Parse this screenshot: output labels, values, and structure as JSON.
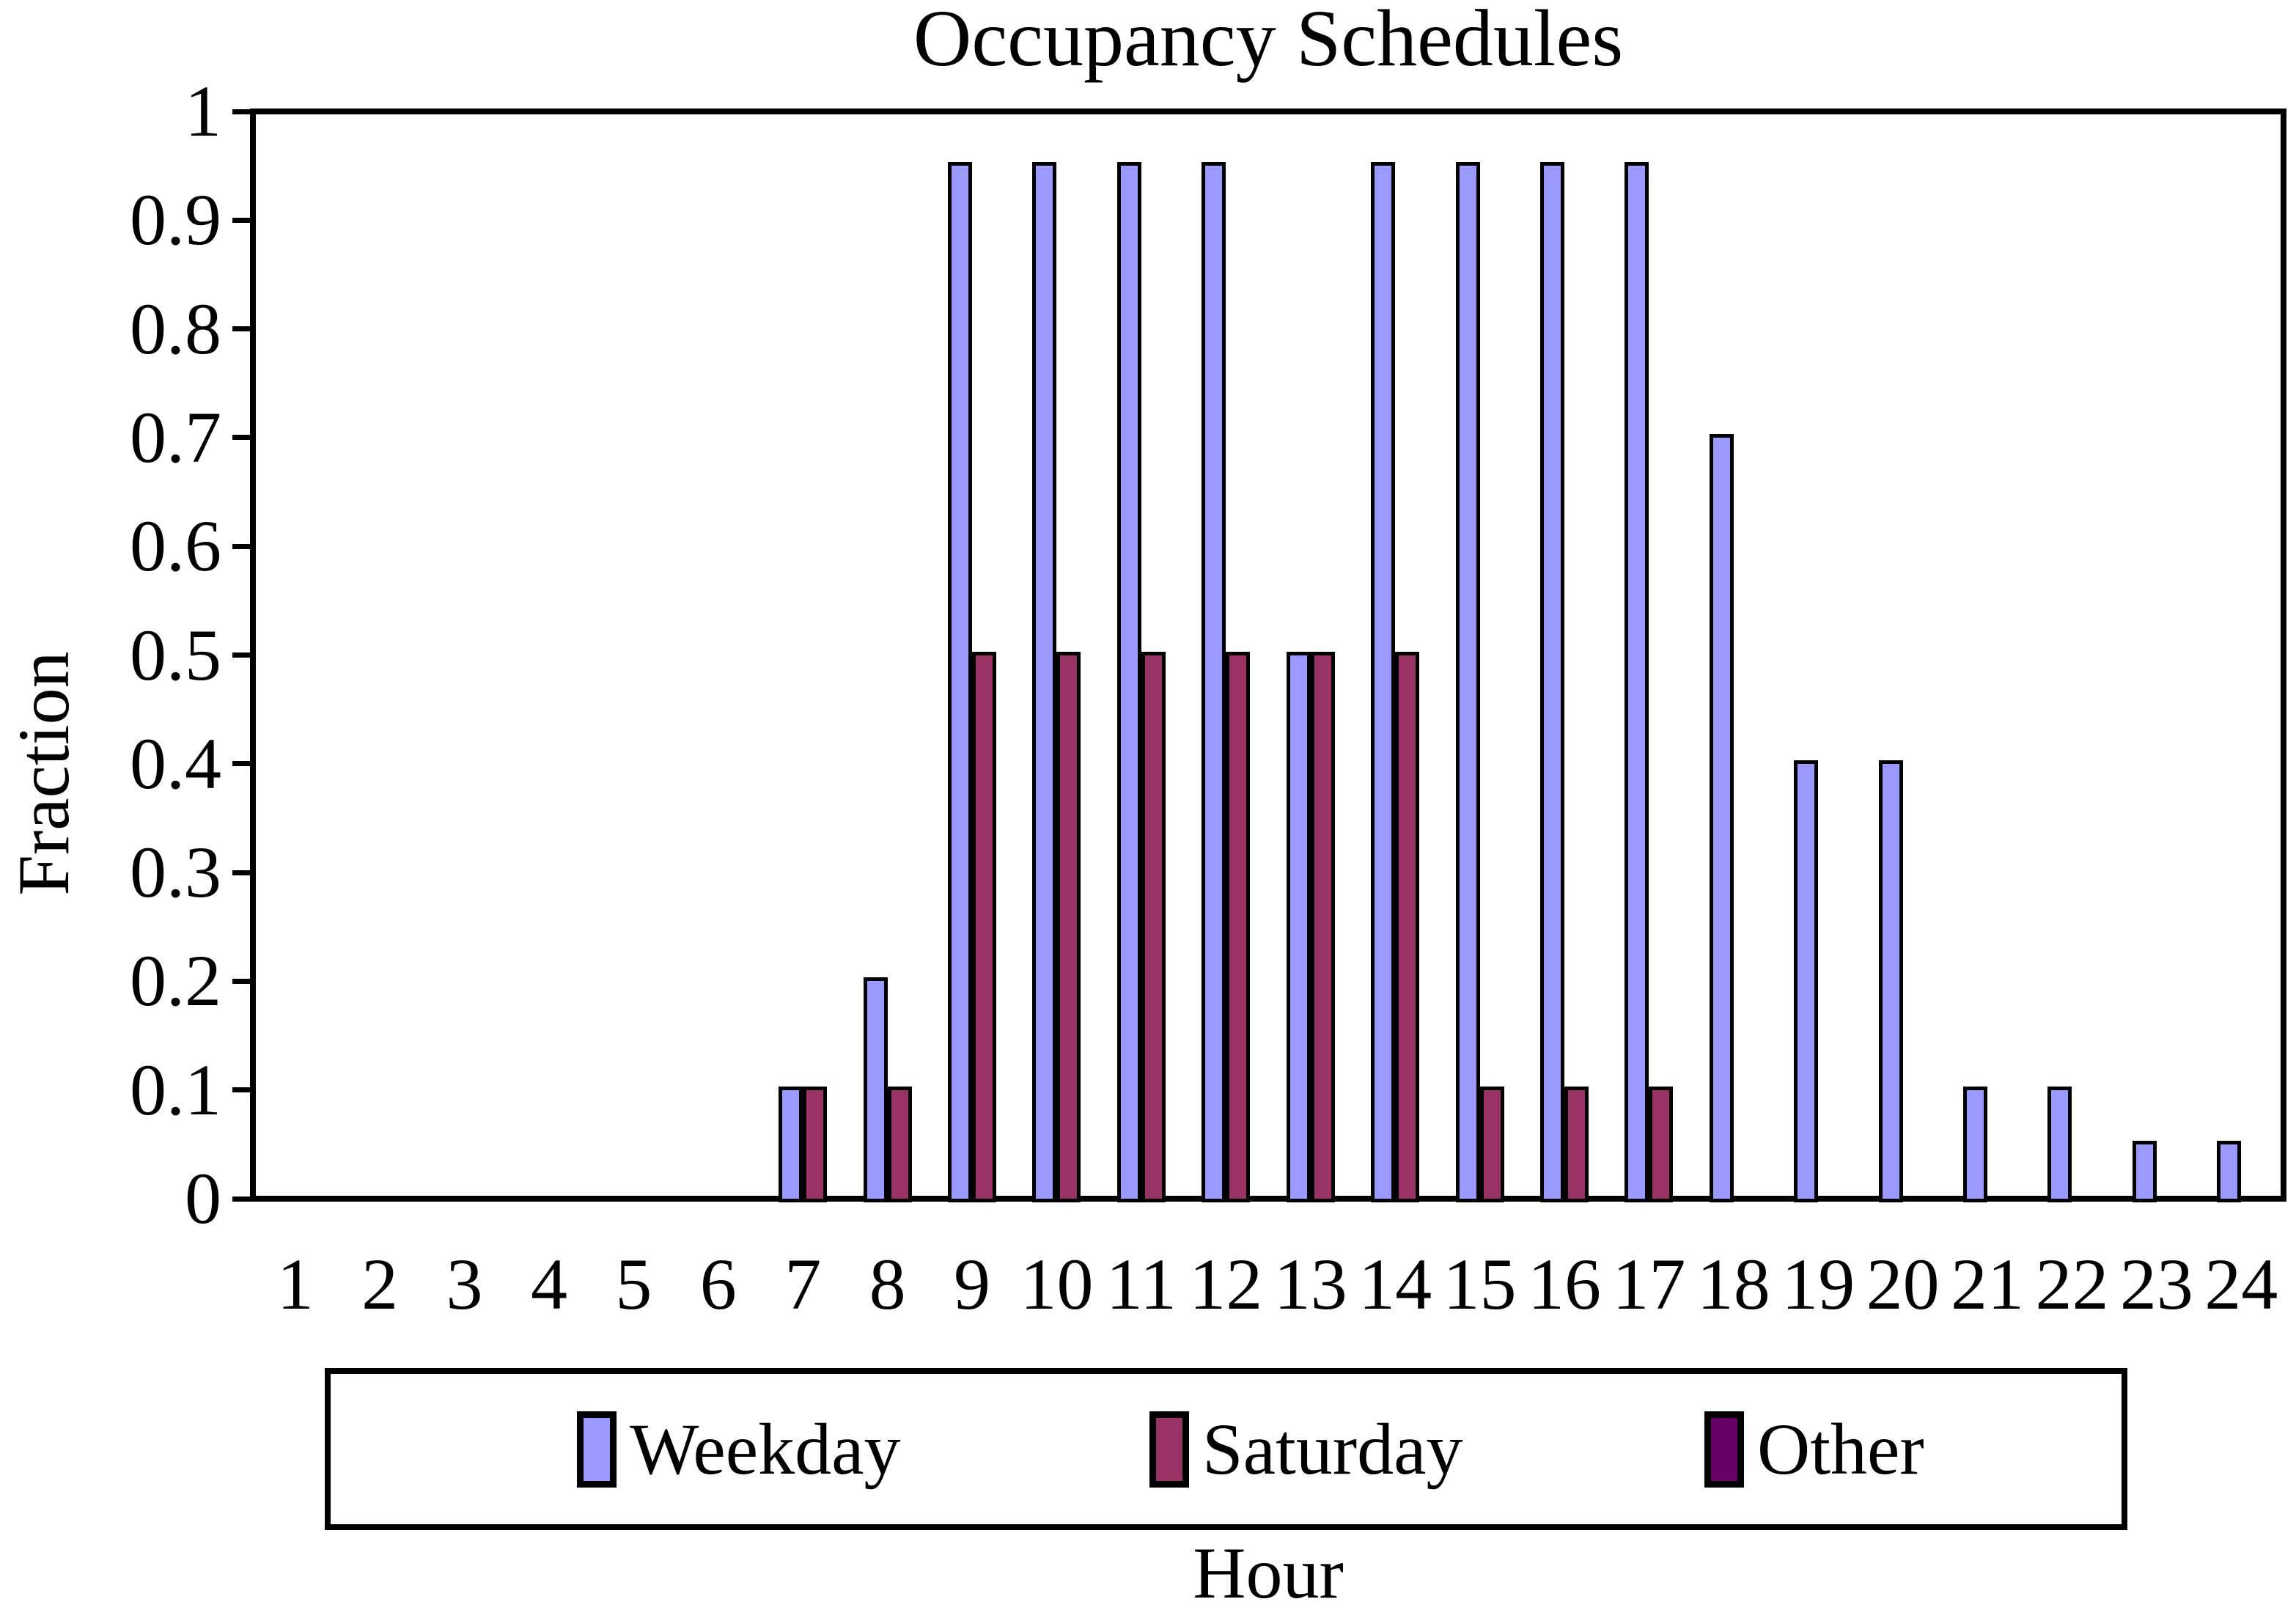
{
  "title": "Occupancy Schedules",
  "chart_data": {
    "type": "bar",
    "title": "Occupancy Schedules",
    "xlabel": "Hour",
    "ylabel": "Fraction",
    "ylim": [
      0,
      1
    ],
    "grid": false,
    "legend_position": "bottom",
    "ytick_labels": [
      "1",
      "0.9",
      "0.8",
      "0.7",
      "0.6",
      "0.5",
      "0.4",
      "0.3",
      "0.2",
      "0.1",
      "0"
    ],
    "categories": [
      "1",
      "2",
      "3",
      "4",
      "5",
      "6",
      "7",
      "8",
      "9",
      "10",
      "11",
      "12",
      "13",
      "14",
      "15",
      "16",
      "17",
      "18",
      "19",
      "20",
      "21",
      "22",
      "23",
      "24"
    ],
    "series": [
      {
        "name": "Weekday",
        "color": "#9999FF",
        "values": [
          0,
          0,
          0,
          0,
          0,
          0,
          0.1,
          0.2,
          0.95,
          0.95,
          0.95,
          0.95,
          0.5,
          0.95,
          0.95,
          0.95,
          0.95,
          0.7,
          0.4,
          0.4,
          0.1,
          0.1,
          0.05,
          0.05
        ]
      },
      {
        "name": "Saturday",
        "color": "#993366",
        "values": [
          0,
          0,
          0,
          0,
          0,
          0,
          0.1,
          0.1,
          0.5,
          0.5,
          0.5,
          0.5,
          0.5,
          0.5,
          0.1,
          0.1,
          0.1,
          0,
          0,
          0,
          0,
          0,
          0,
          0
        ]
      },
      {
        "name": "Other",
        "color": "#660066",
        "values": [
          0,
          0,
          0,
          0,
          0,
          0,
          0,
          0,
          0,
          0,
          0,
          0,
          0,
          0,
          0,
          0,
          0,
          0,
          0,
          0,
          0,
          0,
          0,
          0
        ]
      }
    ]
  }
}
